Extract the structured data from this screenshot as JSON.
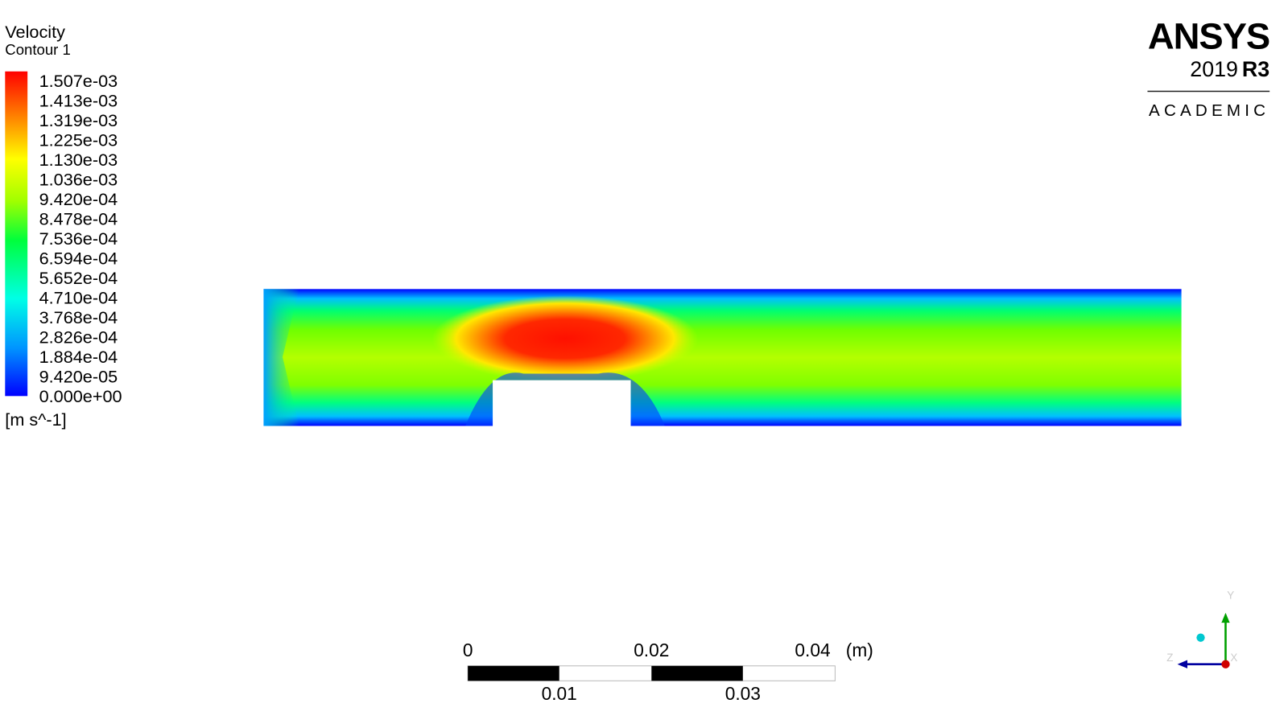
{
  "legend": {
    "title": "Velocity",
    "subtitle": "Contour 1",
    "labels": [
      "1.507e-03",
      "1.413e-03",
      "1.319e-03",
      "1.225e-03",
      "1.130e-03",
      "1.036e-03",
      "9.420e-04",
      "8.478e-04",
      "7.536e-04",
      "6.594e-04",
      "5.652e-04",
      "4.710e-04",
      "3.768e-04",
      "2.826e-04",
      "1.884e-04",
      "9.420e-05",
      "0.000e+00"
    ],
    "units": "[m s^-1]"
  },
  "logo": {
    "brand": "ANSYS",
    "version": "2019",
    "release": "R3",
    "edition": "ACADEMIC"
  },
  "scale_bar": {
    "top_labels": [
      "0",
      "0.02",
      "0.04"
    ],
    "unit": "(m)",
    "bottom_labels": [
      "0.01",
      "0.03"
    ]
  },
  "triad": {
    "y": "Y",
    "z": "Z",
    "x": "X"
  }
}
